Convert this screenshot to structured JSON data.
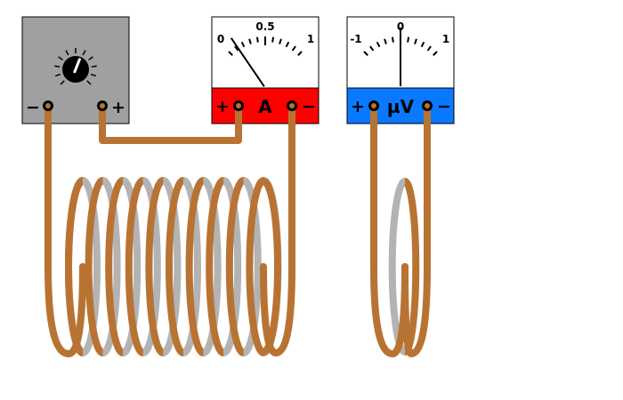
{
  "power_supply": {
    "negative_label": "−",
    "positive_label": "+",
    "body_color": "#a0a0a0",
    "knob_fraction": 0.58
  },
  "ammeter": {
    "unit": "A",
    "positive_label": "+",
    "negative_label": "−",
    "scale_min": "0",
    "scale_mid": "0.5",
    "scale_max": "1",
    "reading": 0.12,
    "band_color": "#ff0000"
  },
  "voltmeter": {
    "unit": "µV",
    "positive_label": "+",
    "negative_label": "−",
    "scale_min": "-1",
    "scale_mid": "0",
    "scale_max": "1",
    "reading": 0,
    "band_color": "#0a78ff"
  },
  "colors": {
    "wire": "#b87333",
    "coil_back": "#b3b3b3"
  }
}
